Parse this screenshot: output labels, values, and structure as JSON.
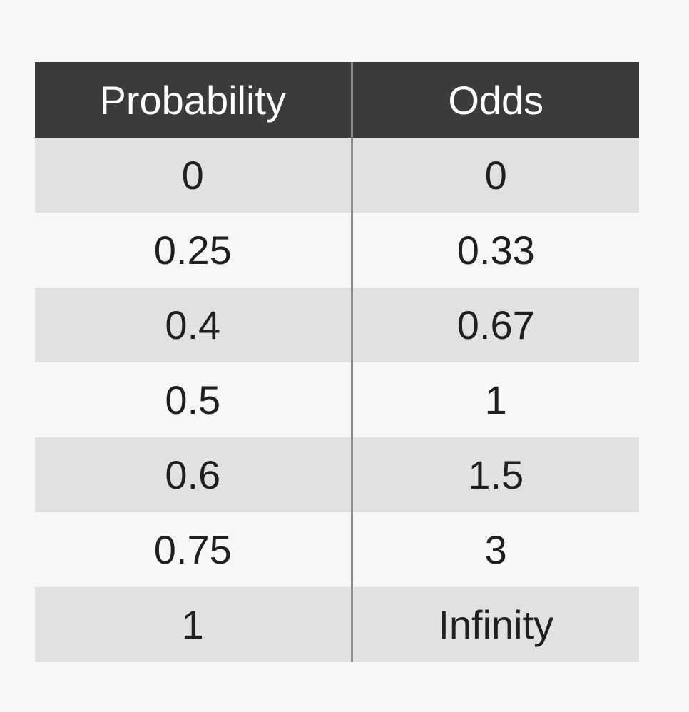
{
  "table": {
    "headers": [
      "Probability",
      "Odds"
    ],
    "rows": [
      [
        "0",
        "0"
      ],
      [
        "0.25",
        "0.33"
      ],
      [
        "0.4",
        "0.67"
      ],
      [
        "0.5",
        "1"
      ],
      [
        "0.6",
        "1.5"
      ],
      [
        "0.75",
        "3"
      ],
      [
        "1",
        "Infinity"
      ]
    ],
    "colors": {
      "header_bg": "#3b3b3b",
      "header_text": "#ffffff",
      "row_shaded": "#e1e1e1",
      "row_plain": "#f7f7f7",
      "divider": "#8c8c8c"
    }
  }
}
